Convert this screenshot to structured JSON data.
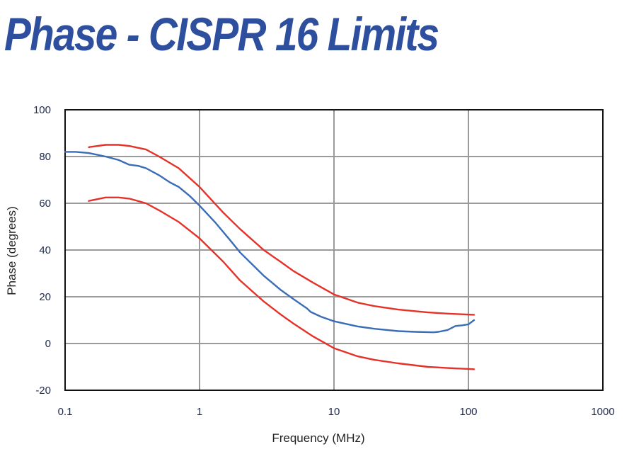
{
  "title": "Phase - CISPR 16 Limits",
  "chart_data": {
    "type": "line",
    "xlabel": "Frequency (MHz)",
    "ylabel": "Phase (degrees)",
    "xscale": "log",
    "xlim": [
      0.1,
      1000
    ],
    "ylim": [
      -20,
      100
    ],
    "x_ticks": [
      "0.1",
      "1",
      "10",
      "100",
      "1000"
    ],
    "y_ticks": [
      "-20",
      "0",
      "20",
      "40",
      "60",
      "80",
      "100"
    ],
    "grid": true,
    "series": [
      {
        "color": "#e53228",
        "x": [
          0.15,
          0.2,
          0.25,
          0.3,
          0.4,
          0.5,
          0.7,
          1,
          1.5,
          2,
          3,
          4,
          5,
          7,
          10,
          15,
          20,
          30,
          50,
          70,
          110
        ],
        "y": [
          84,
          85,
          85,
          84.5,
          83,
          80,
          75,
          67,
          56,
          49,
          40,
          35,
          31,
          26,
          21,
          17.5,
          16,
          14.5,
          13.3,
          12.8,
          12.3
        ]
      },
      {
        "color": "#3a6db5",
        "x": [
          0.1,
          0.12,
          0.15,
          0.2,
          0.25,
          0.3,
          0.35,
          0.4,
          0.5,
          0.6,
          0.7,
          0.85,
          1,
          1.3,
          1.7,
          2,
          3,
          4,
          5,
          6.3,
          6.7,
          8,
          10,
          15,
          20,
          30,
          40,
          55,
          60,
          70,
          80,
          90,
          100,
          110
        ],
        "y": [
          82,
          82,
          81.5,
          80,
          78.5,
          76.5,
          76,
          75,
          72,
          69,
          67,
          63,
          59,
          52,
          44,
          39,
          29,
          23,
          19,
          15,
          13.5,
          11.5,
          9.5,
          7.3,
          6.3,
          5.3,
          5,
          4.8,
          5,
          5.8,
          7.5,
          7.8,
          8.2,
          10
        ]
      },
      {
        "color": "#e53228",
        "x": [
          0.15,
          0.2,
          0.25,
          0.3,
          0.4,
          0.5,
          0.7,
          1,
          1.5,
          2,
          3,
          4,
          5,
          7,
          10,
          15,
          20,
          30,
          50,
          70,
          110
        ],
        "y": [
          61,
          62.5,
          62.5,
          62,
          60,
          57,
          52,
          45,
          35,
          27,
          18,
          12.5,
          8.5,
          3,
          -2,
          -5.5,
          -7,
          -8.5,
          -10,
          -10.5,
          -11
        ]
      }
    ]
  }
}
